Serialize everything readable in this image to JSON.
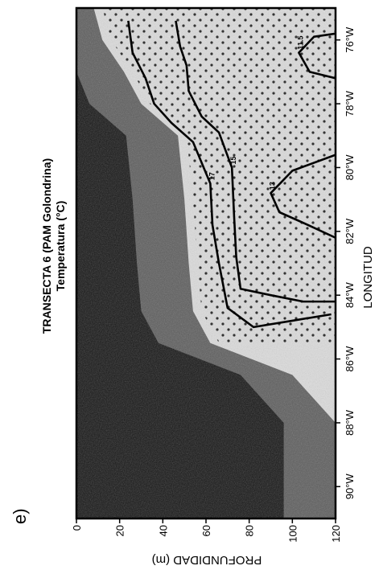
{
  "panel_label": "e)",
  "colors": {
    "background": "#ffffff",
    "cold_deep": "#141414",
    "mid_water": "#5c5c5c",
    "warm_surface": "#dcdcdc",
    "contour": "#000000",
    "stipple": "#000000"
  },
  "chart_data": {
    "type": "heatmap",
    "title": "TRANSECTA 6 (PAM Golondrina)",
    "subtitle": "Temperatura (°C)",
    "xlabel": "LONGITUD",
    "ylabel": "PROFUNDIDAD (m)",
    "xlim": [
      -91,
      -75
    ],
    "ylim": [
      0,
      120
    ],
    "y_inverted": true,
    "x_ticks": [
      {
        "value": -90,
        "label": "90°W"
      },
      {
        "value": -88,
        "label": "88°W"
      },
      {
        "value": -86,
        "label": "86°W"
      },
      {
        "value": -84,
        "label": "84°W"
      },
      {
        "value": -82,
        "label": "82°W"
      },
      {
        "value": -80,
        "label": "80°W"
      },
      {
        "value": -78,
        "label": "78°W"
      },
      {
        "value": -76,
        "label": "76°W"
      }
    ],
    "y_ticks": [
      {
        "value": 0,
        "label": "0"
      },
      {
        "value": 20,
        "label": "20"
      },
      {
        "value": 40,
        "label": "40"
      },
      {
        "value": 60,
        "label": "60"
      },
      {
        "value": 80,
        "label": "80"
      },
      {
        "value": 100,
        "label": "100"
      },
      {
        "value": 120,
        "label": "120"
      }
    ],
    "thermocline_depth_m": [
      {
        "lon": -91,
        "depth": 120
      },
      {
        "lon": -88,
        "depth": 120
      },
      {
        "lon": -86.5,
        "depth": 100
      },
      {
        "lon": -85.5,
        "depth": 62
      },
      {
        "lon": -84.5,
        "depth": 54
      },
      {
        "lon": -83,
        "depth": 52
      },
      {
        "lon": -81,
        "depth": 50
      },
      {
        "lon": -79,
        "depth": 47
      },
      {
        "lon": -78,
        "depth": 30
      },
      {
        "lon": -77,
        "depth": 22
      },
      {
        "lon": -76,
        "depth": 12
      },
      {
        "lon": -75,
        "depth": 8
      }
    ],
    "contours": [
      {
        "label": "15",
        "points": [
          {
            "lon": -84.2,
            "depth": 120
          },
          {
            "lon": -84.2,
            "depth": 105
          },
          {
            "lon": -84.0,
            "depth": 90
          },
          {
            "lon": -83.8,
            "depth": 76
          },
          {
            "lon": -82.8,
            "depth": 74
          },
          {
            "lon": -81.5,
            "depth": 73
          },
          {
            "lon": -80.0,
            "depth": 72
          },
          {
            "lon": -78.9,
            "depth": 66
          },
          {
            "lon": -78.4,
            "depth": 58
          },
          {
            "lon": -77.6,
            "depth": 52
          },
          {
            "lon": -76.8,
            "depth": 51
          },
          {
            "lon": -76.2,
            "depth": 48
          },
          {
            "lon": -75.4,
            "depth": 46
          }
        ]
      },
      {
        "label": "17",
        "points": [
          {
            "lon": -84.6,
            "depth": 118
          },
          {
            "lon": -84.8,
            "depth": 100
          },
          {
            "lon": -85.0,
            "depth": 82
          },
          {
            "lon": -84.4,
            "depth": 70
          },
          {
            "lon": -83.0,
            "depth": 66
          },
          {
            "lon": -81.8,
            "depth": 63
          },
          {
            "lon": -80.5,
            "depth": 62
          },
          {
            "lon": -79.2,
            "depth": 54
          },
          {
            "lon": -78.6,
            "depth": 44
          },
          {
            "lon": -78.0,
            "depth": 36
          },
          {
            "lon": -77.2,
            "depth": 32
          },
          {
            "lon": -76.4,
            "depth": 26
          },
          {
            "lon": -75.4,
            "depth": 24
          }
        ]
      },
      {
        "label": "13",
        "points": [
          {
            "lon": -82.2,
            "depth": 120
          },
          {
            "lon": -81.7,
            "depth": 104
          },
          {
            "lon": -81.4,
            "depth": 94
          },
          {
            "lon": -80.8,
            "depth": 90
          },
          {
            "lon": -80.1,
            "depth": 100
          },
          {
            "lon": -79.6,
            "depth": 120
          }
        ]
      },
      {
        "label": "11.5",
        "points": [
          {
            "lon": -77.2,
            "depth": 120
          },
          {
            "lon": -77.0,
            "depth": 108
          },
          {
            "lon": -76.4,
            "depth": 103
          },
          {
            "lon": -75.9,
            "depth": 110
          },
          {
            "lon": -75.8,
            "depth": 120
          }
        ]
      }
    ],
    "legend": "none",
    "grid": false
  }
}
